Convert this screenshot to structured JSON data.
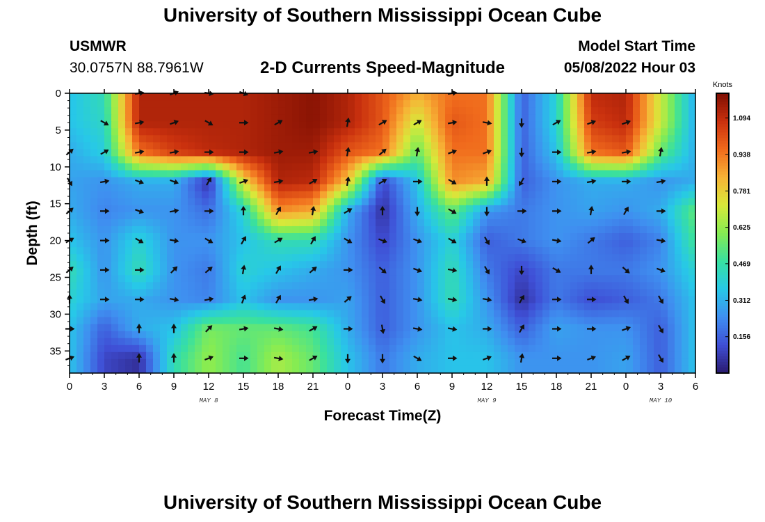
{
  "header": {
    "title": "University of Southern Mississippi Ocean Cube",
    "station": "USMWR",
    "coordinates": "30.0757N  88.7961W",
    "subtitle": "2-D Currents Speed-Magnitude",
    "model_start_label": "Model Start Time",
    "model_start_value": "05/08/2022 Hour 03"
  },
  "footer": {
    "title": "University of Southern Mississippi Ocean Cube"
  },
  "colors": {
    "scale": [
      "#2a1a6e",
      "#3f4fd6",
      "#3f8ff0",
      "#27c8e8",
      "#38e0a0",
      "#86ec52",
      "#d8e83a",
      "#f7b336",
      "#f06a1c",
      "#c9300e",
      "#7e0e02"
    ]
  },
  "chart_data": {
    "type": "heatmap",
    "xlabel": "Forecast Time(Z)",
    "ylabel": "Depth (ft)",
    "x_ticks": [
      "0",
      "3",
      "6",
      "9",
      "12",
      "15",
      "18",
      "21",
      "0",
      "3",
      "6",
      "9",
      "12",
      "15",
      "18",
      "21",
      "0",
      "3",
      "6"
    ],
    "y_ticks": [
      "0",
      "5",
      "10",
      "15",
      "20",
      "25",
      "30",
      "35"
    ],
    "y_range": [
      0,
      38
    ],
    "x_range_hours": [
      0,
      54
    ],
    "day_labels": [
      {
        "text": "MAY 8",
        "hour": 12
      },
      {
        "text": "MAY 9",
        "hour": 36
      },
      {
        "text": "MAY 10",
        "hour": 51
      }
    ],
    "colorbar": {
      "title": "Knots",
      "ticks": [
        "0.156",
        "0.312",
        "0.469",
        "0.625",
        "0.781",
        "0.938",
        "1.094"
      ],
      "range": [
        0,
        1.2
      ]
    },
    "depths": [
      0,
      4,
      8,
      12,
      16,
      20,
      24,
      28,
      32,
      36
    ],
    "hours": [
      0,
      3,
      6,
      9,
      12,
      15,
      18,
      21,
      24,
      27,
      30,
      33,
      36,
      39,
      42,
      45,
      48,
      51,
      54
    ],
    "speed": [
      [
        0.35,
        0.45,
        1.12,
        1.12,
        1.12,
        1.12,
        1.15,
        1.18,
        1.12,
        1.0,
        0.85,
        0.95,
        0.95,
        0.15,
        0.4,
        1.1,
        1.12,
        0.7,
        0.3
      ],
      [
        0.35,
        0.42,
        1.12,
        1.12,
        1.12,
        1.12,
        1.15,
        1.18,
        1.12,
        1.0,
        0.7,
        1.0,
        0.95,
        0.15,
        0.4,
        1.05,
        1.1,
        0.7,
        0.3
      ],
      [
        0.3,
        0.38,
        0.95,
        1.05,
        1.1,
        1.12,
        1.15,
        1.15,
        1.0,
        0.95,
        0.55,
        0.95,
        0.95,
        0.15,
        0.35,
        0.95,
        1.0,
        0.55,
        0.3
      ],
      [
        0.28,
        0.25,
        0.3,
        0.3,
        0.05,
        0.75,
        1.12,
        1.1,
        0.8,
        0.1,
        0.35,
        0.9,
        0.85,
        0.15,
        0.25,
        0.3,
        0.3,
        0.25,
        0.3
      ],
      [
        0.3,
        0.22,
        0.25,
        0.25,
        0.18,
        0.4,
        0.9,
        0.85,
        0.3,
        0.05,
        0.3,
        0.55,
        0.25,
        0.2,
        0.25,
        0.28,
        0.25,
        0.3,
        0.55
      ],
      [
        0.35,
        0.25,
        0.4,
        0.25,
        0.25,
        0.35,
        0.45,
        0.45,
        0.25,
        0.1,
        0.25,
        0.4,
        0.15,
        0.2,
        0.25,
        0.2,
        0.15,
        0.22,
        0.5
      ],
      [
        0.45,
        0.25,
        0.45,
        0.25,
        0.2,
        0.4,
        0.35,
        0.3,
        0.25,
        0.15,
        0.25,
        0.45,
        0.2,
        0.1,
        0.2,
        0.2,
        0.2,
        0.25,
        0.4
      ],
      [
        0.4,
        0.28,
        0.3,
        0.25,
        0.22,
        0.35,
        0.25,
        0.25,
        0.28,
        0.15,
        0.25,
        0.45,
        0.25,
        0.05,
        0.2,
        0.12,
        0.15,
        0.2,
        0.35
      ],
      [
        0.35,
        0.15,
        0.3,
        0.35,
        0.58,
        0.55,
        0.55,
        0.5,
        0.3,
        0.15,
        0.25,
        0.35,
        0.3,
        0.15,
        0.28,
        0.25,
        0.25,
        0.15,
        0.35
      ],
      [
        0.35,
        0.1,
        0.05,
        0.45,
        0.62,
        0.5,
        0.65,
        0.55,
        0.35,
        0.2,
        0.3,
        0.35,
        0.35,
        0.25,
        0.25,
        0.25,
        0.28,
        0.15,
        0.35
      ]
    ],
    "vector_angles_deg": [
      [
        null,
        null,
        10,
        20,
        -10,
        -20,
        null,
        null,
        null,
        null,
        null,
        10,
        null,
        null,
        null,
        null,
        null,
        null,
        null
      ],
      [
        null,
        -30,
        10,
        20,
        -30,
        0,
        30,
        null,
        80,
        30,
        30,
        10,
        -10,
        -90,
        30,
        20,
        20,
        null,
        null
      ],
      [
        40,
        30,
        10,
        10,
        0,
        0,
        10,
        10,
        80,
        40,
        80,
        20,
        20,
        -90,
        0,
        10,
        10,
        80,
        null
      ],
      [
        -60,
        10,
        -20,
        -20,
        60,
        20,
        10,
        30,
        80,
        30,
        0,
        -30,
        90,
        -120,
        0,
        10,
        0,
        10,
        null
      ],
      [
        40,
        0,
        -20,
        10,
        0,
        90,
        60,
        80,
        30,
        90,
        -90,
        -30,
        -90,
        0,
        0,
        80,
        60,
        0,
        null
      ],
      [
        30,
        0,
        -30,
        -10,
        -30,
        60,
        30,
        60,
        -30,
        -20,
        -20,
        -30,
        -60,
        -20,
        -10,
        40,
        null,
        -10,
        null
      ],
      [
        40,
        0,
        0,
        45,
        40,
        80,
        60,
        40,
        0,
        -40,
        -20,
        -10,
        -60,
        -90,
        -30,
        90,
        -40,
        -20,
        null
      ],
      [
        90,
        0,
        0,
        -10,
        10,
        70,
        60,
        10,
        40,
        -60,
        -10,
        -10,
        -10,
        60,
        0,
        0,
        -60,
        -60,
        null
      ],
      [
        0,
        null,
        90,
        90,
        45,
        10,
        -10,
        30,
        0,
        -80,
        -10,
        -10,
        0,
        60,
        0,
        0,
        20,
        -60,
        null
      ],
      [
        20,
        null,
        90,
        90,
        20,
        0,
        -10,
        30,
        -90,
        -90,
        -30,
        0,
        20,
        80,
        0,
        20,
        30,
        -60,
        null
      ]
    ]
  }
}
